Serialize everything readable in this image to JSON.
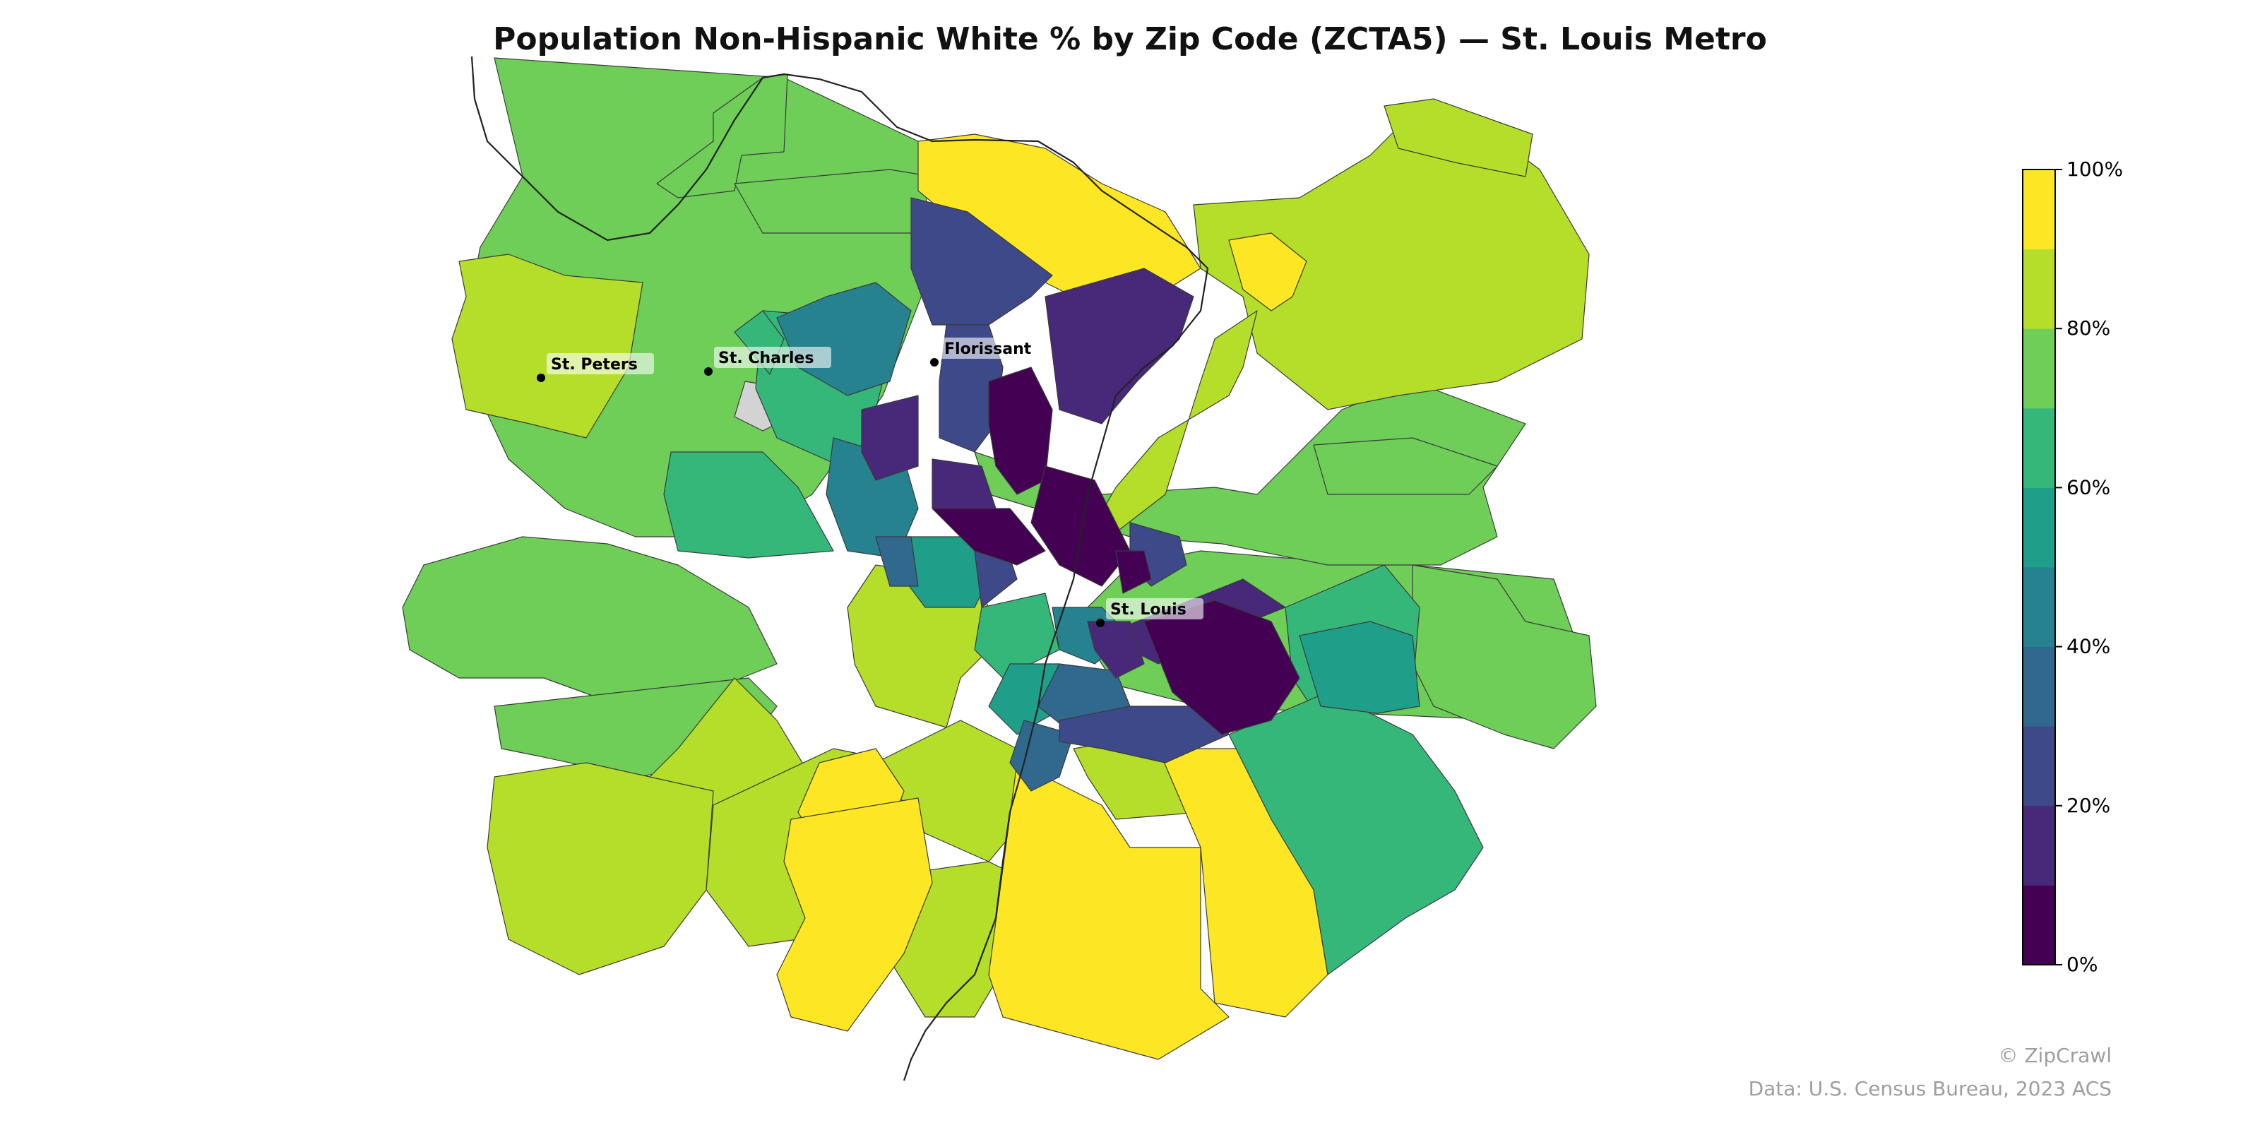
{
  "title": "Population Non-Hispanic White % by Zip Code (ZCTA5) — St. Louis Metro",
  "credits": {
    "copyright": "© ZipCrawl",
    "source": "Data: U.S. Census Bureau, 2023 ACS"
  },
  "colors": {
    "0": "#440154",
    "10": "#482878",
    "20": "#3e4989",
    "30": "#31688e",
    "40": "#26828e",
    "50": "#1f9e89",
    "60": "#35b779",
    "70": "#6ece58",
    "80": "#b5de2b",
    "90": "#fde725",
    "nodata": "#d3d3d3",
    "river": "#222222"
  },
  "legend": {
    "ticks": [
      "0%",
      "20%",
      "40%",
      "60%",
      "80%",
      "100%"
    ],
    "bins": 10
  },
  "cities": [
    {
      "name": "St. Peters"
    },
    {
      "name": "St. Charles"
    },
    {
      "name": "Florissant"
    },
    {
      "name": "St. Louis"
    }
  ]
}
